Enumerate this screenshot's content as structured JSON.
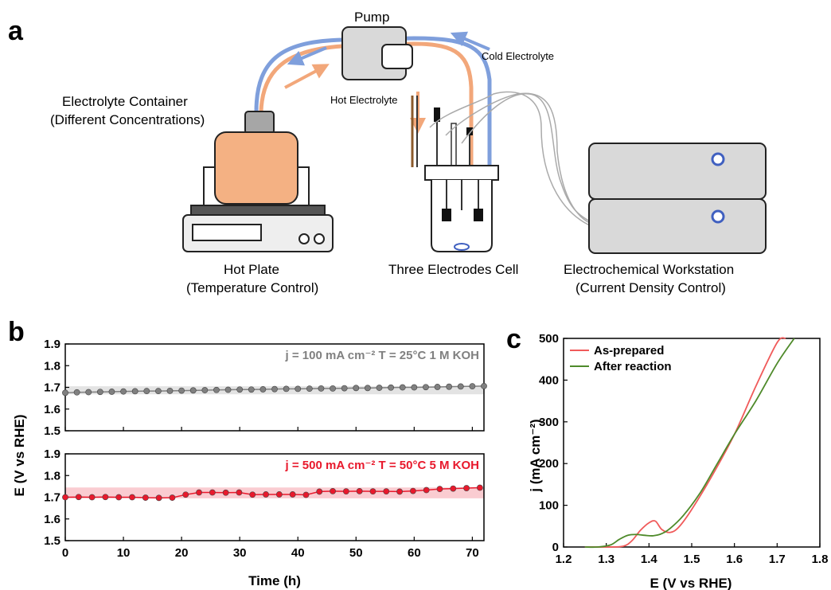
{
  "panels": {
    "a": "a",
    "b": "b",
    "c": "c"
  },
  "schematic": {
    "pump": "Pump",
    "cold_electrolyte": "Cold Electrolyte",
    "hot_electrolyte": "Hot Electrolyte",
    "container_line1": "Electrolyte Container",
    "container_line2": "(Different Concentrations)",
    "hotplate_line1": "Hot Plate",
    "hotplate_line2": "(Temperature Control)",
    "cell": "Three Electrodes Cell",
    "workstation_line1": "Electrochemical Workstation",
    "workstation_line2": "(Current Density Control)",
    "colors": {
      "hot": "#f2a77a",
      "cold": "#7f9fdc",
      "box": "#d9d9d9",
      "container": "#f4b183"
    }
  },
  "chart_data": [
    {
      "type": "line",
      "panel": "b",
      "ylabel": "E (V vs RHE)",
      "xlabel": "Time (h)",
      "xlim": [
        0,
        72
      ],
      "xticks": [
        "0",
        "10",
        "20",
        "30",
        "40",
        "50",
        "60",
        "70"
      ],
      "subplots": [
        {
          "annotation": "j = 100 mA cm⁻²  T = 25°C  1 M KOH",
          "color": "#808080",
          "ylim": [
            1.5,
            1.9
          ],
          "yticks": [
            "1.9",
            "1.8",
            "1.7",
            "1.6",
            "1.5"
          ],
          "band": [
            1.668,
            1.705
          ],
          "x": [
            0,
            2,
            4,
            6,
            8,
            10,
            12,
            14,
            16,
            18,
            20,
            22,
            24,
            26,
            28,
            30,
            32,
            34,
            36,
            38,
            40,
            42,
            44,
            46,
            48,
            50,
            52,
            54,
            56,
            58,
            60,
            62,
            64,
            66,
            68,
            70,
            72
          ],
          "y": [
            1.675,
            1.677,
            1.678,
            1.679,
            1.68,
            1.681,
            1.682,
            1.683,
            1.683,
            1.684,
            1.685,
            1.686,
            1.687,
            1.688,
            1.689,
            1.69,
            1.69,
            1.691,
            1.692,
            1.693,
            1.693,
            1.694,
            1.695,
            1.695,
            1.696,
            1.697,
            1.697,
            1.698,
            1.699,
            1.7,
            1.7,
            1.701,
            1.702,
            1.703,
            1.704,
            1.705,
            1.706
          ]
        },
        {
          "annotation": "j = 500 mA cm⁻²  T = 50°C  5 M KOH",
          "color": "#e8192c",
          "ylim": [
            1.5,
            1.9
          ],
          "yticks": [
            "1.9",
            "1.8",
            "1.7",
            "1.6",
            "1.5"
          ],
          "band": [
            1.695,
            1.745
          ],
          "x": [
            0,
            2.3,
            4.6,
            6.9,
            9.2,
            11.5,
            13.8,
            16.1,
            18.4,
            20.7,
            23,
            25.3,
            27.6,
            29.9,
            32.2,
            34.5,
            36.8,
            39.1,
            41.4,
            43.7,
            46,
            48.3,
            50.6,
            52.9,
            55.2,
            57.5,
            59.8,
            62.1,
            64.4,
            66.7,
            69,
            71.3
          ],
          "y": [
            1.7,
            1.701,
            1.7,
            1.701,
            1.7,
            1.7,
            1.698,
            1.697,
            1.698,
            1.712,
            1.722,
            1.722,
            1.721,
            1.722,
            1.712,
            1.713,
            1.713,
            1.713,
            1.711,
            1.726,
            1.728,
            1.727,
            1.728,
            1.727,
            1.727,
            1.726,
            1.729,
            1.733,
            1.738,
            1.74,
            1.742,
            1.744
          ]
        }
      ]
    },
    {
      "type": "line",
      "panel": "c",
      "xlabel": "E (V vs RHE)",
      "ylabel": "j (mA cm⁻²)",
      "xlim": [
        1.2,
        1.8
      ],
      "ylim": [
        0,
        500
      ],
      "xticks": [
        "1.2",
        "1.3",
        "1.4",
        "1.5",
        "1.6",
        "1.7",
        "1.8"
      ],
      "yticks": [
        "0",
        "100",
        "200",
        "300",
        "400",
        "500"
      ],
      "legend_position": "top-left",
      "series": [
        {
          "name": "As-prepared",
          "color": "#f05a5a",
          "x": [
            1.25,
            1.3,
            1.34,
            1.36,
            1.38,
            1.4,
            1.415,
            1.43,
            1.45,
            1.47,
            1.5,
            1.55,
            1.6,
            1.65,
            1.7,
            1.72
          ],
          "y": [
            0,
            0,
            2,
            15,
            40,
            58,
            62,
            42,
            35,
            48,
            90,
            175,
            270,
            385,
            490,
            500
          ]
        },
        {
          "name": "After reaction",
          "color": "#4e8a2a",
          "x": [
            1.25,
            1.28,
            1.31,
            1.33,
            1.35,
            1.37,
            1.39,
            1.41,
            1.43,
            1.45,
            1.48,
            1.52,
            1.56,
            1.6,
            1.65,
            1.7,
            1.74
          ],
          "y": [
            0,
            0,
            5,
            18,
            28,
            30,
            28,
            27,
            32,
            45,
            75,
            130,
            200,
            270,
            350,
            440,
            500
          ]
        }
      ]
    }
  ]
}
